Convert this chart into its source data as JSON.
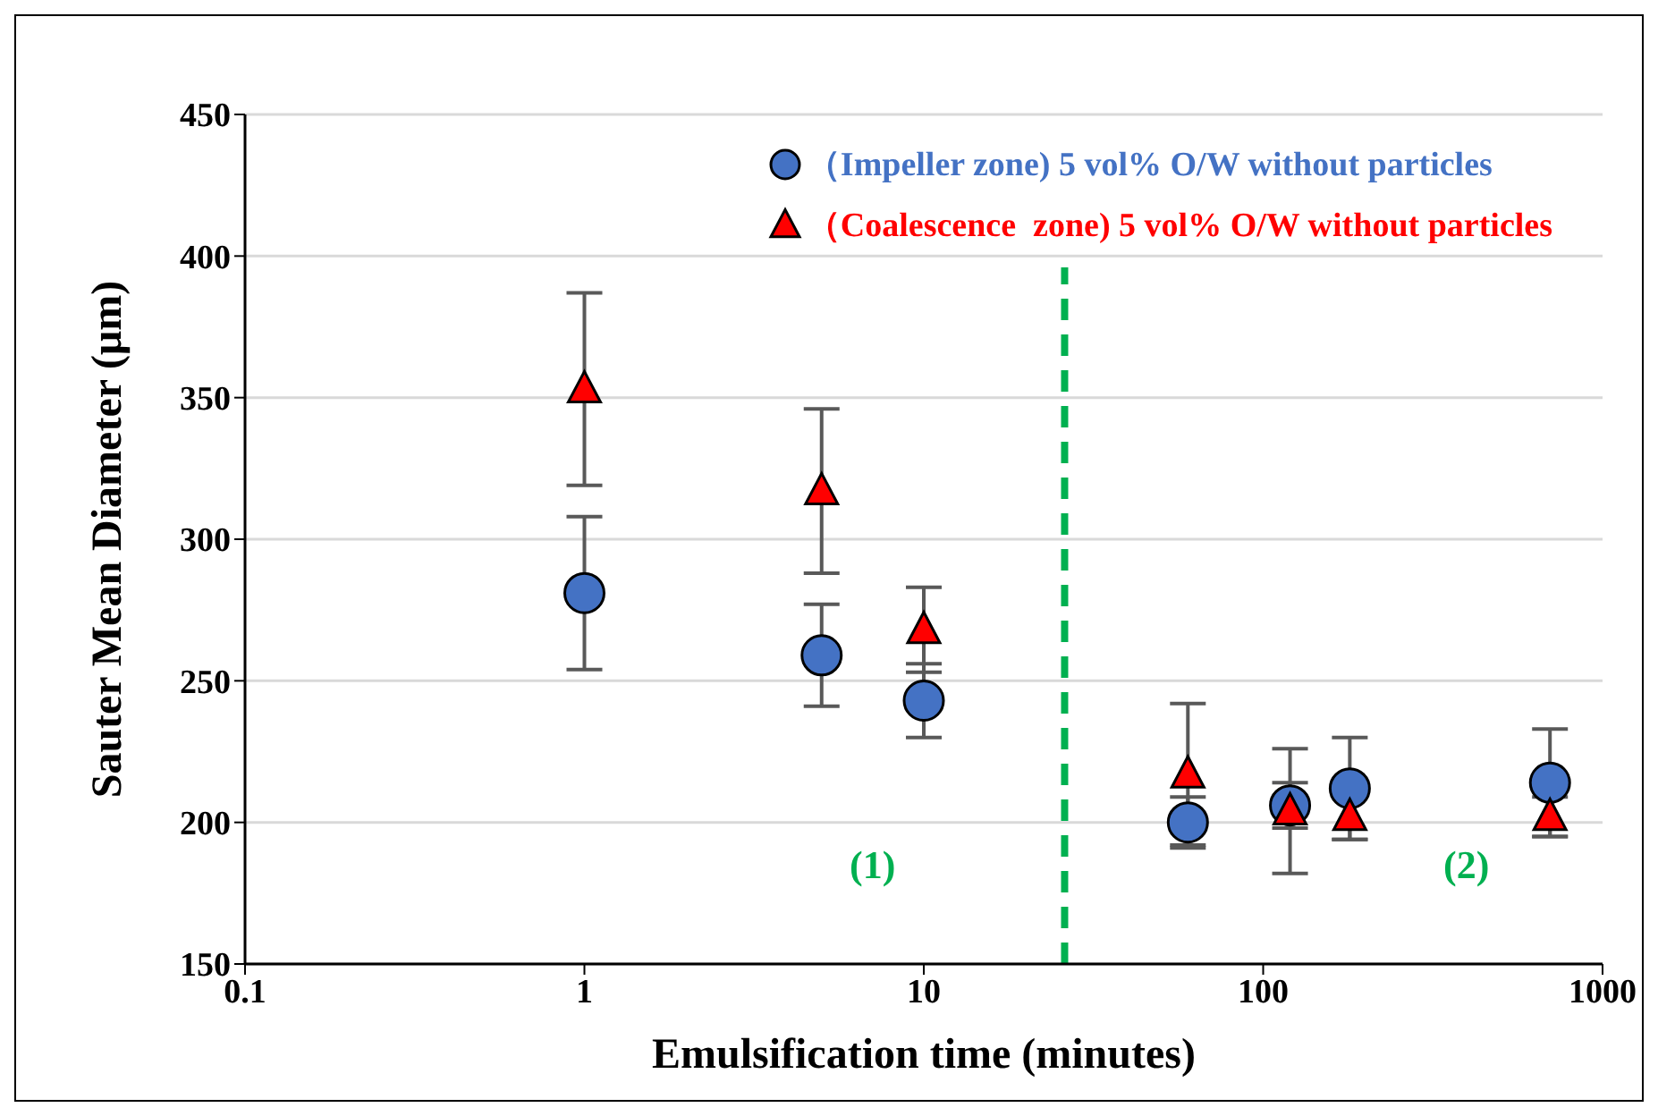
{
  "chart_data": {
    "type": "scatter",
    "xlabel": "Emulsification time (minutes)",
    "ylabel": "Sauter Mean Diameter (μm)",
    "log": "x",
    "xlim": [
      0.1,
      1000
    ],
    "xticks": [
      0.1,
      1,
      10,
      100,
      1000
    ],
    "ylim": [
      150,
      450
    ],
    "yticks": [
      150,
      200,
      250,
      300,
      350,
      400,
      450
    ],
    "grid": "y",
    "legend": "top right",
    "x": [
      1,
      5,
      10,
      60,
      120,
      180,
      700
    ],
    "series": [
      {
        "name": "（Impeller zone) 5 vol% O/W without particles",
        "color": "#4472c4",
        "marker": "circle",
        "values": [
          281,
          259,
          243,
          200,
          206,
          212,
          214
        ],
        "errors": [
          27,
          18,
          13,
          9,
          8,
          18,
          19
        ]
      },
      {
        "name": "（Coalescence  zone) 5 vol% O/W without particles",
        "color": "#ff0000",
        "marker": "triangle",
        "values": [
          353,
          317,
          268,
          217,
          204,
          202,
          202
        ],
        "errors": [
          34,
          29,
          15,
          25,
          22,
          8,
          7
        ]
      }
    ],
    "ref_lines": [
      {
        "axis": "x",
        "value": 26,
        "color": "#00b050",
        "line_style": "dashed"
      }
    ],
    "annotations": [
      "(1)",
      "(2)"
    ]
  }
}
